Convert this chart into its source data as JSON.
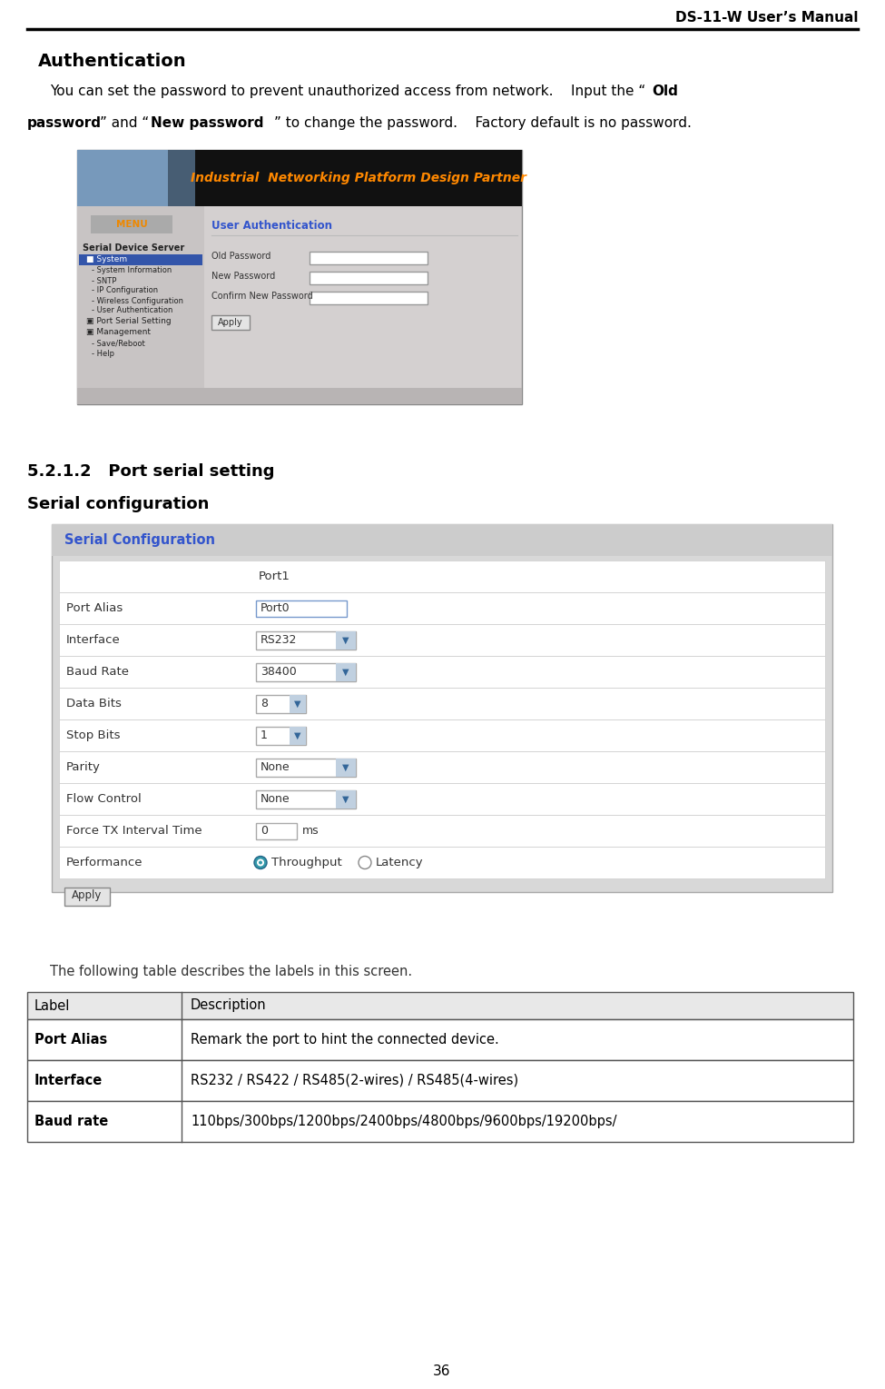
{
  "page_title": "DS-11-W User’s Manual",
  "page_number": "36",
  "section_title": "Authentication",
  "subsection": "5.2.1.2   Port serial setting",
  "subsection2": "Serial configuration",
  "table_intro": "The following table describes the labels in this screen.",
  "table_headers": [
    "Label",
    "Description"
  ],
  "table_rows": [
    [
      "Port Alias",
      "Remark the port to hint the connected device."
    ],
    [
      "Interface",
      "RS232 / RS422 / RS485(2-wires) / RS485(4-wires)"
    ],
    [
      "Baud rate",
      "110bps/300bps/1200bps/2400bps/4800bps/9600bps/19200bps/"
    ]
  ],
  "bg_color": "#ffffff",
  "banner_bg": "#111111",
  "banner_img_color": "#7799bb",
  "banner_text": "Industrial  Networking Platform Design Partner",
  "banner_text_color": "#ff8800",
  "ss1_body_bg": "#d4d0d0",
  "ss1_nav_bg": "#c8c4c4",
  "ss1_highlight_bg": "#3355aa",
  "ss2_outer_bg": "#d8d8d8",
  "ss2_inner_bg": "#ffffff",
  "ss2_header_color": "#3355cc",
  "ss2_header_text": "Serial Configuration",
  "tbl_header_bg": "#e8e8e8",
  "tbl_row_bg": "#ffffff",
  "radio_filled_color": "#3399aa",
  "radio_empty_color": "#ffffff"
}
